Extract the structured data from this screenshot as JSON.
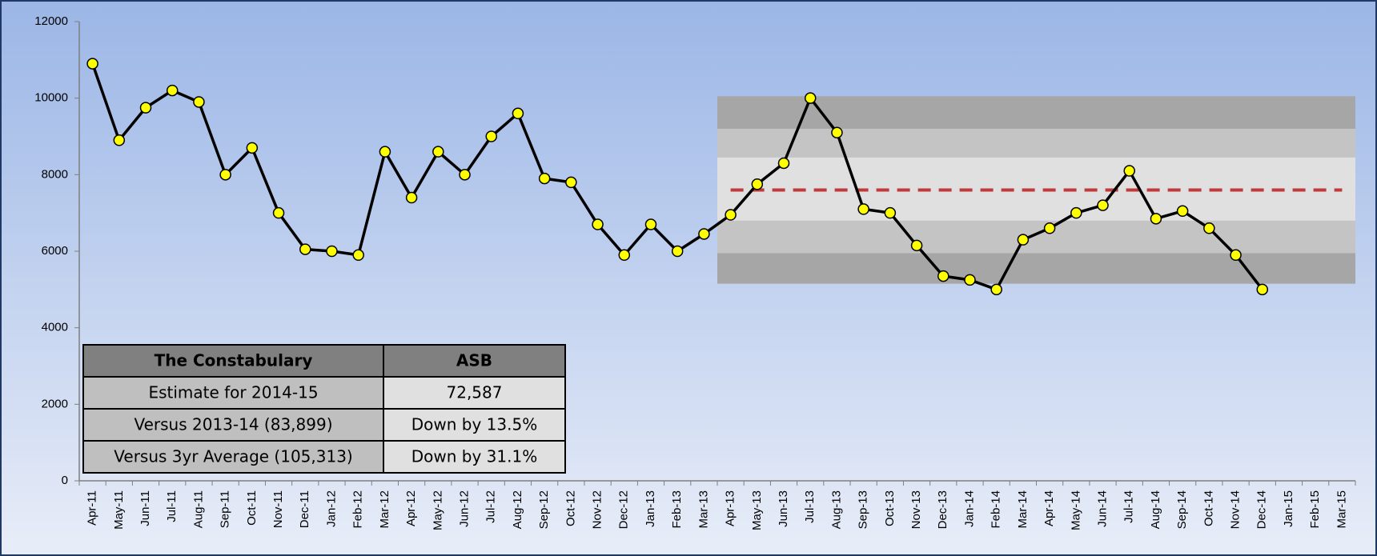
{
  "chart_data": {
    "type": "line",
    "categories": [
      "Apr-11",
      "May-11",
      "Jun-11",
      "Jul-11",
      "Aug-11",
      "Sep-11",
      "Oct-11",
      "Nov-11",
      "Dec-11",
      "Jan-12",
      "Feb-12",
      "Mar-12",
      "Apr-12",
      "May-12",
      "Jun-12",
      "Jul-12",
      "Aug-12",
      "Sep-12",
      "Oct-12",
      "Nov-12",
      "Dec-12",
      "Jan-13",
      "Feb-13",
      "Mar-13",
      "Apr-13",
      "May-13",
      "Jun-13",
      "Jul-13",
      "Aug-13",
      "Sep-13",
      "Oct-13",
      "Nov-13",
      "Dec-13",
      "Jan-14",
      "Feb-14",
      "Mar-14",
      "Apr-14",
      "May-14",
      "Jun-14",
      "Jul-14",
      "Aug-14",
      "Sep-14",
      "Oct-14",
      "Nov-14",
      "Dec-14",
      "Jan-15",
      "Feb-15",
      "Mar-15"
    ],
    "values": [
      10900,
      8900,
      9750,
      10200,
      9900,
      8000,
      8700,
      7000,
      6050,
      6000,
      5900,
      8600,
      7400,
      8600,
      8000,
      9000,
      9600,
      7900,
      7800,
      6700,
      5900,
      6700,
      6000,
      6450,
      6950,
      7750,
      8300,
      10000,
      9100,
      7100,
      7000,
      6150,
      5350,
      5250,
      5000,
      6300,
      6600,
      7000,
      7200,
      8100,
      6850,
      7050,
      6600,
      5900,
      5000,
      null,
      null,
      null
    ],
    "color": "#000000",
    "marker_color": "#ffff00",
    "ylim": [
      0,
      12000
    ],
    "yticks": [
      0,
      2000,
      4000,
      6000,
      8000,
      10000,
      12000
    ],
    "band_start": "Apr-13",
    "bands": [
      {
        "range": [
          5150,
          5950
        ],
        "color": "#a6a6a6"
      },
      {
        "range": [
          5950,
          6800
        ],
        "color": "#c4c4c4"
      },
      {
        "range": [
          6800,
          8450
        ],
        "color": "#e0e0e0"
      },
      {
        "range": [
          8450,
          9200
        ],
        "color": "#c4c4c4"
      },
      {
        "range": [
          9200,
          10050
        ],
        "color": "#a6a6a6"
      }
    ],
    "mean": 7600,
    "mean_color": "#c0393b"
  },
  "table": {
    "header": [
      "The Constabulary",
      "ASB"
    ],
    "rows": [
      [
        "Estimate for 2014-15",
        "72,587"
      ],
      [
        "Versus 2013-14 (83,899)",
        "Down by 13.5%"
      ],
      [
        "Versus 3yr Average (105,313)",
        "Down by 31.1%"
      ]
    ]
  }
}
